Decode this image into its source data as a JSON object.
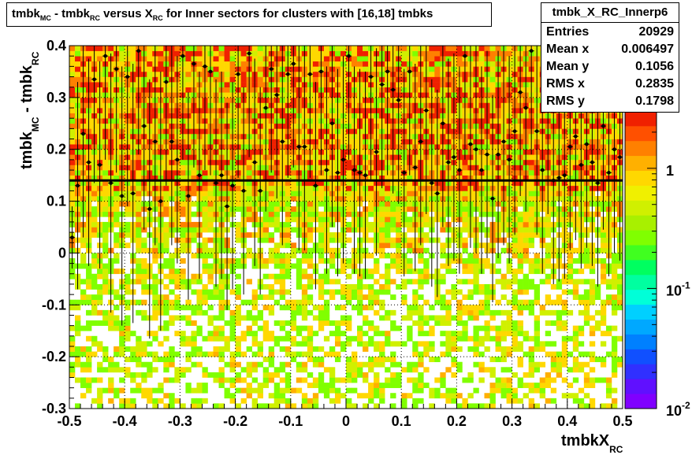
{
  "title": {
    "text": "tmbk",
    "sub_mc": "MC",
    "mid1": " - tmbk",
    "sub_rc1": "RC",
    "mid2": " versus X",
    "sub_rc2": "RC",
    "rest": " for Inner sectors for clusters with [16,18] tmbks"
  },
  "stats": {
    "name": "tmbk_X_RC_Innerp6",
    "rows": [
      {
        "key": "Entries",
        "value": "20929"
      },
      {
        "key": "Mean x",
        "value": "0.006497"
      },
      {
        "key": "Mean y",
        "value": "0.1056"
      },
      {
        "key": "RMS x",
        "value": "0.2835"
      },
      {
        "key": "RMS y",
        "value": "0.1798"
      }
    ]
  },
  "chart_data": {
    "type": "heatmap",
    "xlabel": "tmbkX",
    "xlabel_sub": "RC",
    "ylabel": "tmbk",
    "ylabel_sub1": "MC",
    "ylabel_mid": " - tmbk",
    "ylabel_sub2": "RC",
    "xlim": [
      -0.5,
      0.5
    ],
    "ylim": [
      -0.3,
      0.4
    ],
    "x_ticks": [
      "-0.5",
      "-0.4",
      "-0.3",
      "-0.2",
      "-0.1",
      "0",
      "0.1",
      "0.2",
      "0.3",
      "0.4",
      "0.5"
    ],
    "y_ticks": [
      "-0.3",
      "-0.2",
      "-0.1",
      "0",
      "0.1",
      "0.2",
      "0.3",
      "0.4"
    ],
    "colorbar": {
      "scale": "log",
      "range": [
        0.01,
        3
      ],
      "tick_labels": [
        {
          "base": "10",
          "exp": "-2",
          "value": 0.01
        },
        {
          "base": "10",
          "exp": "-1",
          "value": 0.1
        },
        {
          "base": "1",
          "exp": "",
          "value": 1
        }
      ],
      "palette": [
        "#8000ff",
        "#6010ff",
        "#3030ff",
        "#1050ff",
        "#0080ff",
        "#00a8ff",
        "#00d0ff",
        "#00ffd8",
        "#00ffa0",
        "#00ff60",
        "#40ff20",
        "#80ff00",
        "#a8f000",
        "#d0f000",
        "#f0f000",
        "#ffd800",
        "#ffb000",
        "#ff8000",
        "#ff5000",
        "#f02000"
      ]
    },
    "grid": true,
    "fit_line": {
      "slope": 0,
      "intercept": 0.14
    },
    "profile": {
      "x": [
        -0.495,
        -0.485,
        -0.475,
        -0.465,
        -0.455,
        -0.445,
        -0.435,
        -0.425,
        -0.415,
        -0.405,
        -0.395,
        -0.385,
        -0.375,
        -0.365,
        -0.355,
        -0.345,
        -0.335,
        -0.325,
        -0.315,
        -0.305,
        -0.295,
        -0.285,
        -0.275,
        -0.265,
        -0.255,
        -0.245,
        -0.235,
        -0.225,
        -0.215,
        -0.205,
        -0.195,
        -0.185,
        -0.175,
        -0.165,
        -0.155,
        -0.145,
        -0.135,
        -0.125,
        -0.115,
        -0.105,
        -0.095,
        -0.085,
        -0.075,
        -0.065,
        -0.055,
        -0.045,
        -0.035,
        -0.025,
        -0.015,
        -0.005,
        0.005,
        0.015,
        0.025,
        0.035,
        0.045,
        0.055,
        0.065,
        0.075,
        0.085,
        0.095,
        0.105,
        0.115,
        0.125,
        0.135,
        0.145,
        0.155,
        0.165,
        0.175,
        0.185,
        0.195,
        0.205,
        0.215,
        0.225,
        0.235,
        0.245,
        0.255,
        0.265,
        0.275,
        0.285,
        0.295,
        0.305,
        0.315,
        0.325,
        0.335,
        0.345,
        0.355,
        0.365,
        0.375,
        0.385,
        0.395,
        0.405,
        0.415,
        0.425,
        0.435,
        0.445,
        0.455,
        0.465,
        0.475,
        0.485,
        0.495
      ],
      "y": [
        0.03,
        0.13,
        0.23,
        0.175,
        0.335,
        0.17,
        0.38,
        0.135,
        0.355,
        0.11,
        0.34,
        0.115,
        0.39,
        0.245,
        0.085,
        0.215,
        0.1,
        0.33,
        0.215,
        0.18,
        0.38,
        0.11,
        0.365,
        0.15,
        0.36,
        0.35,
        0.135,
        0.15,
        0.09,
        0.13,
        0.345,
        0.12,
        0.385,
        0.175,
        0.12,
        0.28,
        0.355,
        0.305,
        0.215,
        0.345,
        0.365,
        0.205,
        0.205,
        0.345,
        0.13,
        0.35,
        0.16,
        0.25,
        0.155,
        0.18,
        0.38,
        0.16,
        0.155,
        0.15,
        0.34,
        0.195,
        0.325,
        0.35,
        0.315,
        0.295,
        0.155,
        0.35,
        0.165,
        0.215,
        0.275,
        0.135,
        0.115,
        0.25,
        0.175,
        0.185,
        0.16,
        0.38,
        0.21,
        0.2,
        0.16,
        0.19,
        0.105,
        0.19,
        0.215,
        0.18,
        0.235,
        0.31,
        0.28,
        0.39,
        0.235,
        0.16,
        0.275,
        0.14,
        0.145,
        0.15,
        0.205,
        0.225,
        0.17,
        0.21,
        0.175,
        0.135,
        0.245,
        0.155,
        0.2,
        0.185
      ],
      "err": [
        0.06,
        0.2,
        0.2,
        0.2,
        0.2,
        0.2,
        0.2,
        0.25,
        0.2,
        0.25,
        0.25,
        0.25,
        0.2,
        0.2,
        0.25,
        0.2,
        0.25,
        0.2,
        0.2,
        0.2,
        0.2,
        0.2,
        0.2,
        0.2,
        0.2,
        0.2,
        0.2,
        0.2,
        0.2,
        0.2,
        0.2,
        0.2,
        0.2,
        0.2,
        0.2,
        0.2,
        0.2,
        0.2,
        0.2,
        0.2,
        0.2,
        0.2,
        0.2,
        0.2,
        0.2,
        0.2,
        0.2,
        0.2,
        0.2,
        0.2,
        0.2,
        0.2,
        0.2,
        0.2,
        0.2,
        0.2,
        0.2,
        0.2,
        0.2,
        0.2,
        0.2,
        0.2,
        0.2,
        0.2,
        0.2,
        0.2,
        0.2,
        0.2,
        0.2,
        0.2,
        0.2,
        0.2,
        0.2,
        0.2,
        0.2,
        0.2,
        0.2,
        0.2,
        0.2,
        0.2,
        0.2,
        0.2,
        0.2,
        0.2,
        0.2,
        0.2,
        0.2,
        0.2,
        0.2,
        0.2,
        0.2,
        0.2,
        0.2,
        0.2,
        0.2,
        0.2,
        0.2,
        0.2,
        0.2,
        0.2
      ]
    }
  }
}
